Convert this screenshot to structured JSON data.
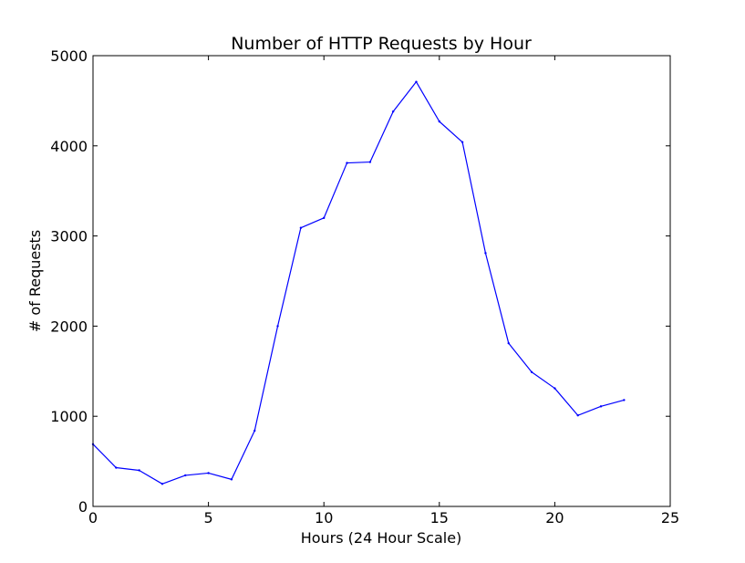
{
  "chart_data": {
    "type": "line",
    "title": "Number of HTTP Requests by Hour",
    "xlabel": "Hours (24 Hour Scale)",
    "ylabel": "# of Requests",
    "xlim": [
      0,
      25
    ],
    "ylim": [
      0,
      5000
    ],
    "xticks": [
      0,
      5,
      10,
      15,
      20,
      25
    ],
    "yticks": [
      0,
      1000,
      2000,
      3000,
      4000,
      5000
    ],
    "grid": false,
    "legend": "none",
    "series": [
      {
        "color": "#0000ff",
        "x": [
          0,
          1,
          2,
          3,
          4,
          5,
          6,
          7,
          8,
          9,
          10,
          11,
          12,
          13,
          14,
          15,
          16,
          17,
          18,
          19,
          20,
          21,
          22,
          23
        ],
        "y": [
          690,
          430,
          400,
          250,
          345,
          370,
          300,
          840,
          2000,
          3090,
          3200,
          3810,
          3820,
          4380,
          4710,
          4270,
          4040,
          2810,
          1810,
          1490,
          1310,
          1010,
          1110,
          1180
        ]
      }
    ]
  }
}
